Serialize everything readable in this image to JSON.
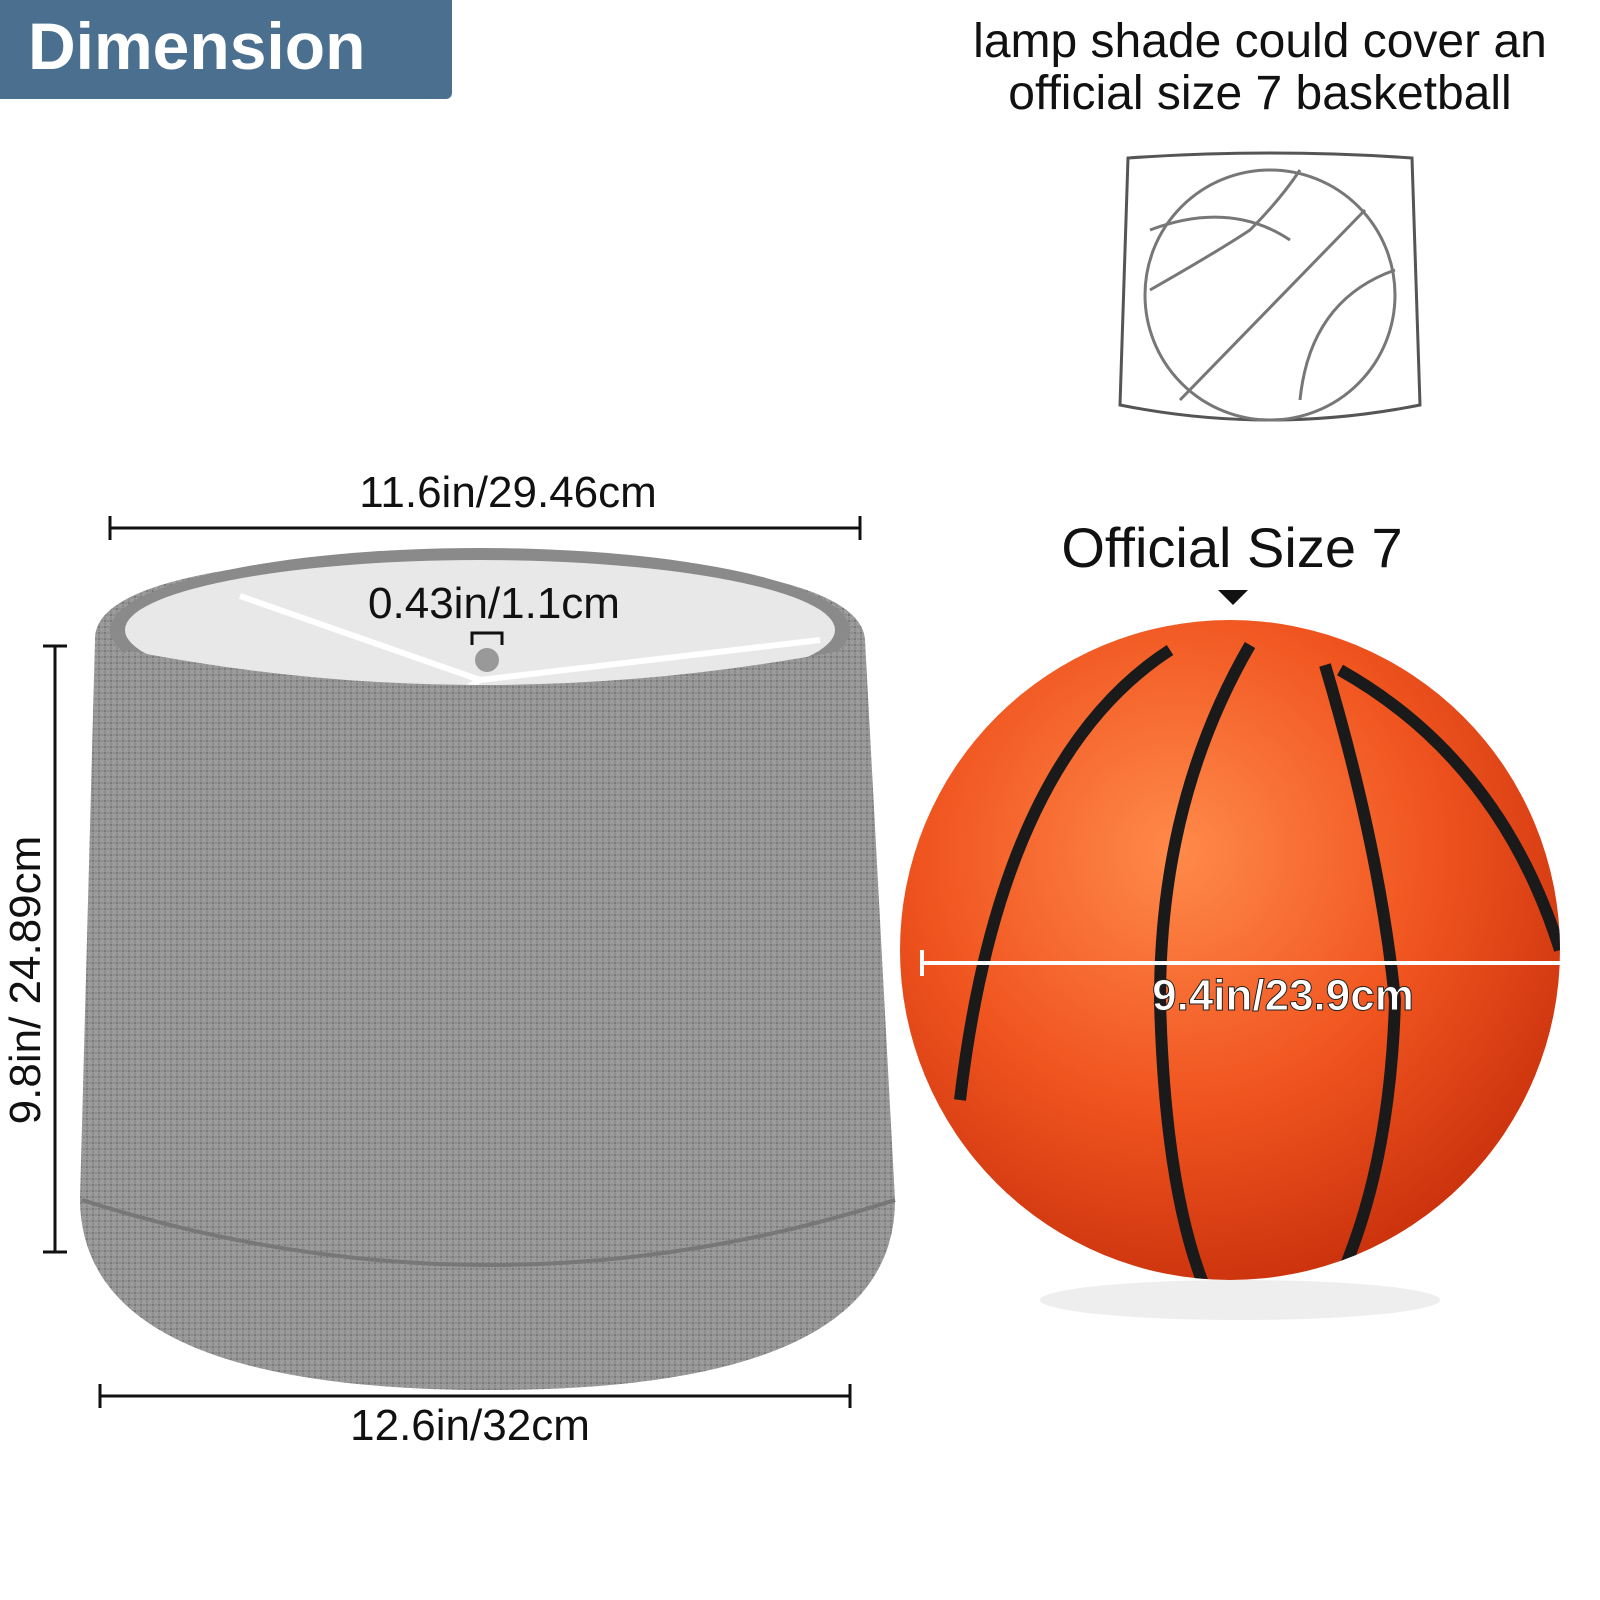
{
  "header": {
    "title": "Dimension"
  },
  "caption": "lamp shade could cover an official size 7 basketball",
  "lampshade": {
    "top_diameter": "11.6in/29.46cm",
    "fitter_height": "0.43in/1.1cm",
    "height": "9.8in/ 24.89cm",
    "bottom_diameter": "12.6in/32cm"
  },
  "basketball": {
    "label": "Official Size 7",
    "diameter": "9.4in/23.9cm"
  },
  "colors": {
    "badge": "#4a6f8f",
    "shade": "#8c8c8c",
    "ball": "#f0541f"
  }
}
